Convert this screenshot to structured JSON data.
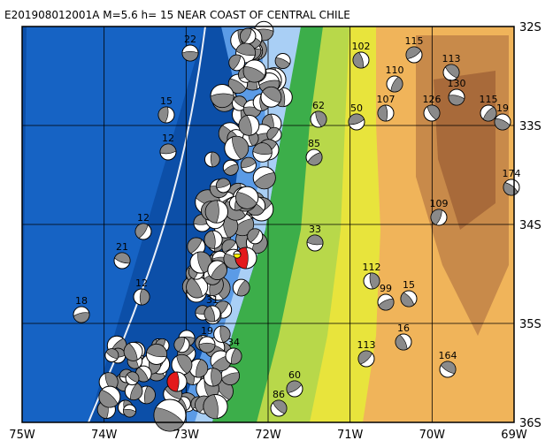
{
  "title": "E201908012001A  M=5.6  h= 15  NEAR COAST OF CENTRAL CHILE",
  "lon_labels": [
    "75W",
    "74W",
    "73W",
    "72W",
    "71W",
    "70W",
    "69W"
  ],
  "lat_labels": [
    "32S",
    "33S",
    "34S",
    "35S",
    "36S"
  ],
  "depth_labels": [
    "22",
    "102",
    "115",
    "113",
    "110",
    "130",
    "107",
    "50",
    "126",
    "115",
    "19",
    "15",
    "12",
    "62",
    "85",
    "174",
    "109",
    "33",
    "112",
    "99",
    "15",
    "12",
    "21",
    "12",
    "18",
    "16",
    "113",
    "164",
    "34",
    "19",
    "31",
    "60",
    "86"
  ]
}
